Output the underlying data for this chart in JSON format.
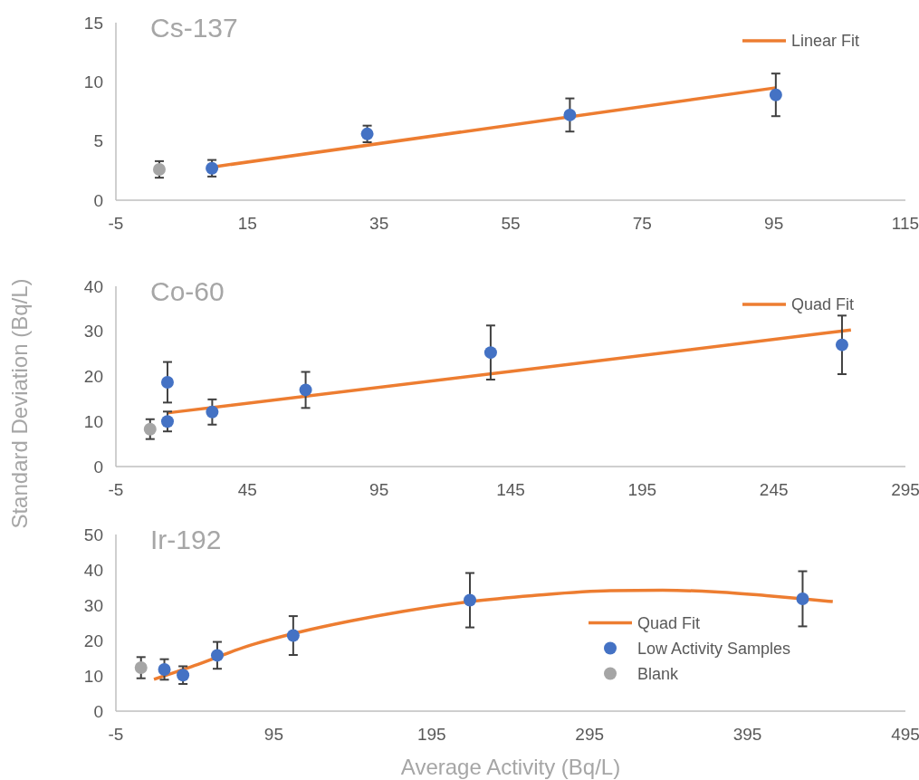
{
  "chart_data": [
    {
      "type": "scatter",
      "title": "Cs-137",
      "xlim": [
        -5,
        115
      ],
      "xticks": [
        -5,
        15,
        35,
        55,
        75,
        95,
        115
      ],
      "ylim": [
        0,
        15
      ],
      "yticks": [
        0,
        5,
        10,
        15
      ],
      "legend": "top right",
      "series": [
        {
          "name": "Linear Fit",
          "type": "line",
          "marker": "none",
          "color": "#ed7d31",
          "x": [
            9.6,
            95.3
          ],
          "values": [
            2.8,
            9.5
          ]
        },
        {
          "marker": "circle",
          "color": "#4472c4",
          "x": [
            9.6,
            33.2,
            64,
            95.3
          ],
          "values": [
            2.7,
            5.6,
            7.2,
            8.9
          ],
          "errors": [
            0.7,
            0.7,
            1.4,
            1.8
          ]
        },
        {
          "marker": "circle",
          "color": "#a5a5a5",
          "x": [
            1.6
          ],
          "values": [
            2.6
          ],
          "errors": [
            0.7
          ]
        }
      ]
    },
    {
      "type": "scatter",
      "title": "Co-60",
      "ylabel": "Standard Deviation (Bq/L)",
      "xlim": [
        -5,
        295
      ],
      "xticks": [
        -5,
        45,
        95,
        145,
        195,
        245,
        295
      ],
      "ylim": [
        0,
        40
      ],
      "yticks": [
        0,
        10,
        20,
        30,
        40
      ],
      "legend": "top right",
      "series": [
        {
          "name": "Quad Fit",
          "type": "line",
          "marker": "none",
          "color": "#ed7d31",
          "x": [
            14.6,
            145,
            274.3
          ],
          "values": [
            11.9,
            21.1,
            30.3
          ]
        },
        {
          "marker": "circle",
          "color": "#4472c4",
          "x": [
            14.6,
            14.6,
            31.6,
            67.1,
            137.4,
            270.9
          ],
          "values": [
            18.7,
            10,
            12.1,
            17,
            25.3,
            27
          ],
          "errors": [
            4.5,
            2.2,
            2.8,
            4,
            6,
            6.5
          ]
        },
        {
          "marker": "circle",
          "color": "#a5a5a5",
          "x": [
            8
          ],
          "values": [
            8.3
          ],
          "errors": [
            2.2
          ]
        }
      ]
    },
    {
      "type": "scatter",
      "title": "Ir-192",
      "xlabel": "Average Activity (Bq/L)",
      "xlim": [
        -5,
        495
      ],
      "xticks": [
        -5,
        95,
        195,
        295,
        395,
        495
      ],
      "ylim": [
        0,
        50
      ],
      "yticks": [
        0,
        10,
        20,
        30,
        40,
        50
      ],
      "legend": "right",
      "series": [
        {
          "name": "Quad Fit",
          "type": "line",
          "marker": "none",
          "color": "#ed7d31",
          "x": [
            19.1,
            44.8,
            77.7,
            110.6,
            143.5,
            176.4,
            219.3,
            258.8,
            308.1,
            341.1,
            373.9,
            406.9,
            430,
            449
          ],
          "values": [
            9,
            12.9,
            18.3,
            22.3,
            25.5,
            28.2,
            31,
            32.7,
            34.1,
            34.2,
            33.8,
            32.7,
            31.8,
            31
          ]
        },
        {
          "name": "Low Activity Samples",
          "marker": "circle",
          "color": "#4472c4",
          "x": [
            25.7,
            37.5,
            59.2,
            107.3,
            219.2,
            429.9
          ],
          "values": [
            11.8,
            10.2,
            15.8,
            21.4,
            31.4,
            31.8
          ],
          "errors": [
            2.9,
            2.5,
            3.8,
            5.5,
            7.7,
            7.8
          ]
        },
        {
          "name": "Blank",
          "marker": "circle",
          "color": "#a5a5a5",
          "x": [
            10.9
          ],
          "values": [
            12.3
          ],
          "errors": [
            3
          ]
        }
      ]
    }
  ]
}
